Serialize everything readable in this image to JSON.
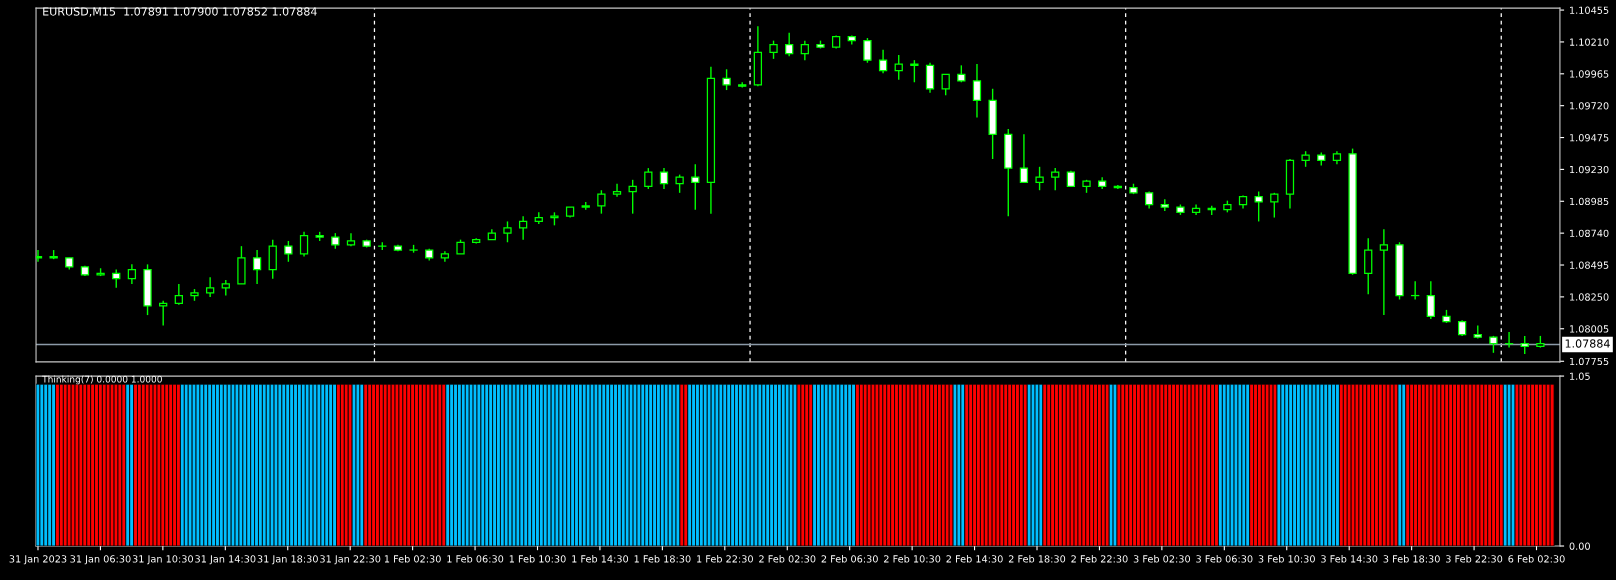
{
  "chart_data": [
    {
      "type": "candlestick",
      "title": "EURUSD,M15  1.07891 1.07900 1.07852 1.07884",
      "color": "#00ff00",
      "categories": [
        null,
        null,
        null,
        null,
        null,
        null,
        null,
        null,
        null,
        null,
        null,
        null,
        null,
        null,
        null,
        null,
        null,
        null,
        null,
        null,
        null,
        null,
        null,
        null,
        null,
        null,
        null,
        null,
        null,
        null,
        null,
        null,
        null,
        null,
        null,
        null,
        null,
        null,
        null,
        null,
        null,
        null,
        null,
        null,
        null,
        null,
        null,
        null,
        null,
        null,
        null,
        null,
        null,
        null,
        null,
        null,
        null,
        null,
        null,
        null,
        null,
        null,
        null,
        null,
        null,
        null,
        null,
        null,
        null,
        null,
        null,
        null,
        null,
        null,
        null,
        null,
        null,
        null,
        null,
        null,
        null,
        null,
        null,
        null,
        null,
        null,
        null,
        null,
        null,
        null,
        null,
        null,
        null,
        null,
        null,
        null,
        null
      ],
      "ohlc": [
        [
          1.0855,
          1.0861,
          1.0852,
          1.0856
        ],
        [
          1.0856,
          1.0861,
          1.0854,
          1.0855
        ],
        [
          1.0855,
          1.0855,
          1.0846,
          1.0848
        ],
        [
          1.0848,
          1.0849,
          1.0841,
          1.0842
        ],
        [
          1.0842,
          1.0847,
          1.0841,
          1.0843
        ],
        [
          1.0843,
          1.0846,
          1.0832,
          1.0839
        ],
        [
          1.0839,
          1.085,
          1.0835,
          1.0846
        ],
        [
          1.0846,
          1.085,
          1.0811,
          1.0818
        ],
        [
          1.0818,
          1.0822,
          1.0803,
          1.082
        ],
        [
          1.082,
          1.0835,
          1.0819,
          1.0826
        ],
        [
          1.0826,
          1.0831,
          1.0822,
          1.0828
        ],
        [
          1.0828,
          1.084,
          1.0825,
          1.0832
        ],
        [
          1.0832,
          1.0838,
          1.0826,
          1.0835
        ],
        [
          1.0835,
          1.0864,
          1.0835,
          1.0855
        ],
        [
          1.0855,
          1.0861,
          1.0835,
          1.0846
        ],
        [
          1.0846,
          1.0869,
          1.0839,
          1.0864
        ],
        [
          1.0864,
          1.0868,
          1.0852,
          1.0858
        ],
        [
          1.0858,
          1.0875,
          1.0856,
          1.0872
        ],
        [
          1.0872,
          1.0875,
          1.0868,
          1.0871
        ],
        [
          1.0871,
          1.0874,
          1.0862,
          1.0865
        ],
        [
          1.0865,
          1.0874,
          1.0864,
          1.0868
        ],
        [
          1.0868,
          1.0869,
          1.0863,
          1.0864
        ],
        [
          1.0864,
          1.0867,
          1.0861,
          1.0864
        ],
        [
          1.0864,
          1.0865,
          1.086,
          1.0861
        ],
        [
          1.0861,
          1.0865,
          1.0859,
          1.0861
        ],
        [
          1.0861,
          1.0862,
          1.0853,
          1.0855
        ],
        [
          1.0855,
          1.086,
          1.0852,
          1.0858
        ],
        [
          1.0858,
          1.0869,
          1.0858,
          1.0867
        ],
        [
          1.0867,
          1.087,
          1.0866,
          1.0869
        ],
        [
          1.0869,
          1.0877,
          1.0869,
          1.0874
        ],
        [
          1.0874,
          1.0883,
          1.0867,
          1.0878
        ],
        [
          1.0878,
          1.0887,
          1.0869,
          1.0883
        ],
        [
          1.0883,
          1.089,
          1.0881,
          1.0886
        ],
        [
          1.0886,
          1.089,
          1.088,
          1.0887
        ],
        [
          1.0887,
          1.0894,
          1.0886,
          1.0894
        ],
        [
          1.0894,
          1.0898,
          1.0892,
          1.0895
        ],
        [
          1.0895,
          1.0907,
          1.0889,
          1.0904
        ],
        [
          1.0904,
          1.0912,
          1.0902,
          1.0906
        ],
        [
          1.0906,
          1.0915,
          1.0889,
          1.091
        ],
        [
          1.091,
          1.0924,
          1.0908,
          1.0921
        ],
        [
          1.0921,
          1.0924,
          1.0908,
          1.0912
        ],
        [
          1.0912,
          1.0919,
          1.0905,
          1.0917
        ],
        [
          1.0917,
          1.0927,
          1.0892,
          1.0913
        ],
        [
          1.0913,
          1.1002,
          1.0889,
          1.0993
        ],
        [
          1.0993,
          1.1,
          1.0984,
          1.0988
        ],
        [
          1.0988,
          1.099,
          1.0986,
          1.0987
        ],
        [
          1.0988,
          1.1033,
          1.0987,
          1.1013
        ],
        [
          1.1013,
          1.1022,
          1.1008,
          1.1019
        ],
        [
          1.1019,
          1.1028,
          1.101,
          1.1012
        ],
        [
          1.1012,
          1.1022,
          1.1007,
          1.1019
        ],
        [
          1.1019,
          1.1022,
          1.1016,
          1.1017
        ],
        [
          1.1017,
          1.1026,
          1.1016,
          1.1025
        ],
        [
          1.1025,
          1.1026,
          1.1019,
          1.1022
        ],
        [
          1.1022,
          1.1024,
          1.1005,
          1.1007
        ],
        [
          1.1007,
          1.1015,
          1.0997,
          1.0999
        ],
        [
          1.0999,
          1.1011,
          1.0992,
          1.1004
        ],
        [
          1.1004,
          1.1007,
          1.099,
          1.1003
        ],
        [
          1.1003,
          1.1005,
          1.0982,
          1.0985
        ],
        [
          1.0985,
          1.0996,
          1.098,
          1.0996
        ],
        [
          1.0996,
          1.1003,
          1.099,
          1.0991
        ],
        [
          1.0991,
          1.1004,
          1.0963,
          1.0976
        ],
        [
          1.0976,
          1.0985,
          1.0931,
          1.095
        ],
        [
          1.095,
          1.0954,
          1.0887,
          1.0924
        ],
        [
          1.0924,
          1.095,
          1.0913,
          1.0913
        ],
        [
          1.0913,
          1.0925,
          1.0907,
          1.0917
        ],
        [
          1.0917,
          1.0924,
          1.0907,
          1.0921
        ],
        [
          1.0921,
          1.0922,
          1.091,
          1.091
        ],
        [
          1.091,
          1.0915,
          1.0905,
          1.0914
        ],
        [
          1.0914,
          1.0917,
          1.0908,
          1.091
        ],
        [
          1.091,
          1.0911,
          1.0908,
          1.0909
        ],
        [
          1.0909,
          1.0912,
          1.0904,
          1.0905
        ],
        [
          1.0905,
          1.0906,
          1.0893,
          1.0896
        ],
        [
          1.0896,
          1.09,
          1.0891,
          1.0894
        ],
        [
          1.0894,
          1.0896,
          1.0888,
          1.089
        ],
        [
          1.089,
          1.0896,
          1.0888,
          1.0893
        ],
        [
          1.0893,
          1.0895,
          1.0888,
          1.0892
        ],
        [
          1.0892,
          1.0899,
          1.089,
          1.0896
        ],
        [
          1.0896,
          1.0903,
          1.0893,
          1.0902
        ],
        [
          1.0902,
          1.0906,
          1.0883,
          1.0898
        ],
        [
          1.0898,
          1.0905,
          1.0886,
          1.0904
        ],
        [
          1.0904,
          1.0931,
          1.0893,
          1.093
        ],
        [
          1.093,
          1.0937,
          1.0925,
          1.0934
        ],
        [
          1.0934,
          1.0936,
          1.0926,
          1.093
        ],
        [
          1.093,
          1.0937,
          1.0927,
          1.0935
        ],
        [
          1.0935,
          1.0939,
          1.0842,
          1.0843
        ],
        [
          1.0843,
          1.087,
          1.0827,
          1.0861
        ],
        [
          1.0861,
          1.0877,
          1.0811,
          1.0865
        ],
        [
          1.0865,
          1.0867,
          1.0823,
          1.0826
        ],
        [
          1.0826,
          1.0837,
          1.0823,
          1.0826
        ],
        [
          1.0826,
          1.0837,
          1.0808,
          1.081
        ],
        [
          1.081,
          1.0815,
          1.0805,
          1.0806
        ],
        [
          1.0806,
          1.0807,
          1.0795,
          1.0796
        ],
        [
          1.0796,
          1.0803,
          1.0793,
          1.0794
        ],
        [
          1.0794,
          1.0795,
          1.0782,
          1.0789
        ],
        [
          1.0789,
          1.0798,
          1.0786,
          1.0789
        ],
        [
          1.0789,
          1.0795,
          1.0781,
          1.0787
        ],
        [
          1.0787,
          1.0795,
          1.0786,
          1.0789
        ]
      ],
      "ylim": [
        1.0775,
        1.1047
      ],
      "yticks": [
        1.10455,
        {
          "value": 1.1021,
          "label": "1.10210"
        },
        1.09965,
        {
          "value": 1.0972,
          "label": "1.09720"
        },
        1.09475,
        {
          "value": 1.0923,
          "label": "1.09230"
        },
        1.08985,
        {
          "value": 1.0874,
          "label": "1.08740"
        },
        1.08495,
        {
          "value": 1.0825,
          "label": "1.08250"
        },
        1.08005,
        1.07755
      ],
      "tick_labels": "y",
      "ref_lines": [
        {
          "axis": "y",
          "value": 1.07884,
          "label": "1.07884",
          "color": "#8c9aa8",
          "line_style": "solid"
        }
      ]
    },
    {
      "type": "bar",
      "title": "Thinking(7) 0.0000 1.0000",
      "categories": [
        "31 Jan 2023",
        null,
        null,
        null,
        null,
        null,
        null,
        null,
        null,
        null,
        null,
        null,
        null,
        null,
        null,
        null,
        "31 Jan 06:30",
        null,
        null,
        null,
        null,
        null,
        null,
        null,
        null,
        null,
        null,
        null,
        null,
        null,
        null,
        null,
        "31 Jan 10:30",
        null,
        null,
        null,
        null,
        null,
        null,
        null,
        null,
        null,
        null,
        null,
        null,
        null,
        null,
        null,
        "31 Jan 14:30",
        null,
        null,
        null,
        null,
        null,
        null,
        null,
        null,
        null,
        null,
        null,
        null,
        null,
        null,
        null,
        "31 Jan 18:30",
        null,
        null,
        null,
        null,
        null,
        null,
        null,
        null,
        null,
        null,
        null,
        null,
        null,
        null,
        null,
        "31 Jan 22:30",
        null,
        null,
        null,
        null,
        null,
        null,
        null,
        null,
        null,
        null,
        null,
        null,
        null,
        null,
        null,
        "1 Feb 02:30",
        null,
        null,
        null,
        null,
        null,
        null,
        null,
        null,
        null,
        null,
        null,
        null,
        null,
        null,
        null,
        "1 Feb 06:30",
        null,
        null,
        null,
        null,
        null,
        null,
        null,
        null,
        null,
        null,
        null,
        null,
        null,
        null,
        null,
        "1 Feb 10:30",
        null,
        null,
        null,
        null,
        null,
        null,
        null,
        null,
        null,
        null,
        null,
        null,
        null,
        null,
        null,
        "1 Feb 14:30",
        null,
        null,
        null,
        null,
        null,
        null,
        null,
        null,
        null,
        null,
        null,
        null,
        null,
        null,
        null,
        "1 Feb 18:30",
        null,
        null,
        null,
        null,
        null,
        null,
        null,
        null,
        null,
        null,
        null,
        null,
        null,
        null,
        null,
        "1 Feb 22:30",
        null,
        null,
        null,
        null,
        null,
        null,
        null,
        null,
        null,
        null,
        null,
        null,
        null,
        null,
        null,
        "2 Feb 02:30",
        null,
        null,
        null,
        null,
        null,
        null,
        null,
        null,
        null,
        null,
        null,
        null,
        null,
        null,
        null,
        "2 Feb 06:30",
        null,
        null,
        null,
        null,
        null,
        null,
        null,
        null,
        null,
        null,
        null,
        null,
        null,
        null,
        null,
        "2 Feb 10:30",
        null,
        null,
        null,
        null,
        null,
        null,
        null,
        null,
        null,
        null,
        null,
        null,
        null,
        null,
        null,
        "2 Feb 14:30",
        null,
        null,
        null,
        null,
        null,
        null,
        null,
        null,
        null,
        null,
        null,
        null,
        null,
        null,
        null,
        "2 Feb 18:30",
        null,
        null,
        null,
        null,
        null,
        null,
        null,
        null,
        null,
        null,
        null,
        null,
        null,
        null,
        null,
        "2 Feb 22:30",
        null,
        null,
        null,
        null,
        null,
        null,
        null,
        null,
        null,
        null,
        null,
        null,
        null,
        null,
        null,
        "3 Feb 02:30",
        null,
        null,
        null,
        null,
        null,
        null,
        null,
        null,
        null,
        null,
        null,
        null,
        null,
        null,
        null,
        "3 Feb 06:30",
        null,
        null,
        null,
        null,
        null,
        null,
        null,
        null,
        null,
        null,
        null,
        null,
        null,
        null,
        null,
        "3 Feb 10:30",
        null,
        null,
        null,
        null,
        null,
        null,
        null,
        null,
        null,
        null,
        null,
        null,
        null,
        null,
        null,
        "3 Feb 14:30",
        null,
        null,
        null,
        null,
        null,
        null,
        null,
        null,
        null,
        null,
        null,
        null,
        null,
        null,
        null,
        "3 Feb 18:30",
        null,
        null,
        null,
        null,
        null,
        null,
        null,
        null,
        null,
        null,
        null,
        null,
        null,
        null,
        null,
        "3 Feb 22:30",
        null,
        null,
        null,
        null,
        null,
        null,
        null,
        null,
        null,
        null,
        null,
        null,
        null,
        null,
        null,
        "6 Feb 02:30",
        null,
        null,
        null,
        null
      ],
      "values": [
        1,
        1,
        1,
        1,
        1,
        1,
        1,
        1,
        1,
        1,
        1,
        1,
        1,
        1,
        1,
        1,
        1,
        1,
        1,
        1,
        1,
        1,
        1,
        1,
        1,
        1,
        1,
        1,
        1,
        1,
        1,
        1,
        1,
        1,
        1,
        1,
        1,
        1,
        1,
        1,
        1,
        1,
        1,
        1,
        1,
        1,
        1,
        1,
        1,
        1,
        1,
        1,
        1,
        1,
        1,
        1,
        1,
        1,
        1,
        1,
        1,
        1,
        1,
        1,
        1,
        1,
        1,
        1,
        1,
        1,
        1,
        1,
        1,
        1,
        1,
        1,
        1,
        1,
        1,
        1,
        1,
        1,
        1,
        1,
        1,
        1,
        1,
        1,
        1,
        1,
        1,
        1,
        1,
        1,
        1,
        1,
        1,
        1,
        1,
        1,
        1,
        1,
        1,
        1,
        1,
        1,
        1,
        1,
        1,
        1,
        1,
        1,
        1,
        1,
        1,
        1,
        1,
        1,
        1,
        1,
        1,
        1,
        1,
        1,
        1,
        1,
        1,
        1,
        1,
        1,
        1,
        1,
        1,
        1,
        1,
        1,
        1,
        1,
        1,
        1,
        1,
        1,
        1,
        1,
        1,
        1,
        1,
        1,
        1,
        1,
        1,
        1,
        1,
        1,
        1,
        1,
        1,
        1,
        1,
        1,
        1,
        1,
        1,
        1,
        1,
        1,
        1,
        1,
        1,
        1,
        1,
        1,
        1,
        1,
        1,
        1,
        1,
        1,
        1,
        1,
        1,
        1,
        1,
        1,
        1,
        1,
        1,
        1,
        1,
        1,
        1,
        1,
        1,
        1,
        1,
        1,
        1,
        1,
        1,
        1,
        1,
        1,
        1,
        1,
        1,
        1,
        1,
        1,
        1,
        1,
        1,
        1,
        1,
        1,
        1,
        1,
        1,
        1,
        1,
        1,
        1,
        1,
        1,
        1,
        1,
        1,
        1,
        1,
        1,
        1,
        1,
        1,
        1,
        1,
        1,
        1,
        1,
        1,
        1,
        1,
        1,
        1,
        1,
        1,
        1,
        1,
        1,
        1,
        1,
        1,
        1,
        1,
        1,
        1,
        1,
        1,
        1,
        1,
        1,
        1,
        1,
        1,
        1,
        1,
        1,
        1,
        1,
        1,
        1,
        1,
        1,
        1,
        1,
        1,
        1,
        1,
        1,
        1,
        1,
        1,
        1,
        1,
        1,
        1,
        1,
        1,
        1,
        1,
        1,
        1,
        1,
        1,
        1,
        1,
        1,
        1,
        1,
        1,
        1,
        1,
        1,
        1,
        1,
        1,
        1,
        1,
        1,
        1,
        1,
        1,
        1,
        1,
        1,
        1,
        1,
        1,
        1,
        1,
        1,
        1,
        1,
        1,
        1,
        1,
        1,
        1,
        1,
        1,
        1,
        1,
        1,
        1,
        1,
        1,
        1,
        1,
        1,
        1,
        1,
        1,
        1,
        1,
        1,
        1,
        1,
        1,
        1,
        1,
        1,
        1,
        1,
        1,
        1,
        1,
        1,
        1,
        1,
        1,
        1,
        1,
        1,
        1,
        1,
        1,
        1,
        1,
        1,
        1,
        1,
        1,
        1,
        1,
        1,
        1,
        1,
        1,
        1,
        1,
        1,
        1,
        1,
        1,
        1,
        1,
        1,
        1,
        1,
        1,
        1
      ],
      "colors": [
        "#00bfff",
        "#00bfff",
        "#00bfff",
        "#00bfff",
        "#00bfff",
        "#ff0000",
        "#ff0000",
        "#ff0000",
        "#ff0000",
        "#ff0000",
        "#ff0000",
        "#ff0000",
        "#ff0000",
        "#ff0000",
        "#ff0000",
        "#ff0000",
        "#ff0000",
        "#ff0000",
        "#ff0000",
        "#ff0000",
        "#ff0000",
        "#ff0000",
        "#ff0000",
        "#00bfff",
        "#00bfff",
        "#ff0000",
        "#ff0000",
        "#ff0000",
        "#ff0000",
        "#ff0000",
        "#ff0000",
        "#ff0000",
        "#ff0000",
        "#ff0000",
        "#ff0000",
        "#ff0000",
        "#ff0000",
        "#00bfff",
        "#00bfff",
        "#00bfff",
        "#00bfff",
        "#00bfff",
        "#00bfff",
        "#00bfff",
        "#00bfff",
        "#00bfff",
        "#00bfff",
        "#00bfff",
        "#00bfff",
        "#00bfff",
        "#00bfff",
        "#00bfff",
        "#00bfff",
        "#00bfff",
        "#00bfff",
        "#00bfff",
        "#00bfff",
        "#00bfff",
        "#00bfff",
        "#00bfff",
        "#00bfff",
        "#00bfff",
        "#00bfff",
        "#00bfff",
        "#00bfff",
        "#00bfff",
        "#00bfff",
        "#00bfff",
        "#00bfff",
        "#00bfff",
        "#00bfff",
        "#00bfff",
        "#00bfff",
        "#00bfff",
        "#00bfff",
        "#00bfff",
        "#00bfff",
        "#ff0000",
        "#ff0000",
        "#ff0000",
        "#ff0000",
        "#00bfff",
        "#00bfff",
        "#00bfff",
        "#ff0000",
        "#ff0000",
        "#ff0000",
        "#ff0000",
        "#ff0000",
        "#ff0000",
        "#ff0000",
        "#ff0000",
        "#ff0000",
        "#ff0000",
        "#ff0000",
        "#ff0000",
        "#ff0000",
        "#ff0000",
        "#ff0000",
        "#ff0000",
        "#ff0000",
        "#ff0000",
        "#ff0000",
        "#ff0000",
        "#ff0000",
        "#00bfff",
        "#00bfff",
        "#00bfff",
        "#00bfff",
        "#00bfff",
        "#00bfff",
        "#00bfff",
        "#00bfff",
        "#00bfff",
        "#00bfff",
        "#00bfff",
        "#00bfff",
        "#00bfff",
        "#00bfff",
        "#00bfff",
        "#00bfff",
        "#00bfff",
        "#00bfff",
        "#00bfff",
        "#00bfff",
        "#00bfff",
        "#00bfff",
        "#00bfff",
        "#00bfff",
        "#00bfff",
        "#00bfff",
        "#00bfff",
        "#00bfff",
        "#00bfff",
        "#00bfff",
        "#00bfff",
        "#00bfff",
        "#00bfff",
        "#00bfff",
        "#00bfff",
        "#00bfff",
        "#00bfff",
        "#00bfff",
        "#00bfff",
        "#00bfff",
        "#00bfff",
        "#00bfff",
        "#00bfff",
        "#00bfff",
        "#00bfff",
        "#00bfff",
        "#00bfff",
        "#00bfff",
        "#00bfff",
        "#00bfff",
        "#00bfff",
        "#00bfff",
        "#00bfff",
        "#00bfff",
        "#00bfff",
        "#00bfff",
        "#00bfff",
        "#00bfff",
        "#00bfff",
        "#00bfff",
        "#ff0000",
        "#ff0000",
        "#00bfff",
        "#00bfff",
        "#00bfff",
        "#00bfff",
        "#00bfff",
        "#00bfff",
        "#00bfff",
        "#00bfff",
        "#00bfff",
        "#00bfff",
        "#00bfff",
        "#00bfff",
        "#00bfff",
        "#00bfff",
        "#00bfff",
        "#00bfff",
        "#00bfff",
        "#00bfff",
        "#00bfff",
        "#00bfff",
        "#00bfff",
        "#00bfff",
        "#00bfff",
        "#00bfff",
        "#00bfff",
        "#00bfff",
        "#00bfff",
        "#00bfff",
        "#ff0000",
        "#ff0000",
        "#ff0000",
        "#ff0000",
        "#00bfff",
        "#00bfff",
        "#00bfff",
        "#00bfff",
        "#00bfff",
        "#00bfff",
        "#00bfff",
        "#00bfff",
        "#00bfff",
        "#00bfff",
        "#00bfff",
        "#ff0000",
        "#ff0000",
        "#ff0000",
        "#ff0000",
        "#ff0000",
        "#ff0000",
        "#ff0000",
        "#ff0000",
        "#ff0000",
        "#ff0000",
        "#ff0000",
        "#ff0000",
        "#ff0000",
        "#ff0000",
        "#ff0000",
        "#ff0000",
        "#ff0000",
        "#ff0000",
        "#ff0000",
        "#ff0000",
        "#ff0000",
        "#ff0000",
        "#ff0000",
        "#ff0000",
        "#ff0000",
        "#00bfff",
        "#00bfff",
        "#00bfff",
        "#ff0000",
        "#ff0000",
        "#ff0000",
        "#ff0000",
        "#ff0000",
        "#ff0000",
        "#ff0000",
        "#ff0000",
        "#ff0000",
        "#ff0000",
        "#ff0000",
        "#ff0000",
        "#ff0000",
        "#ff0000",
        "#ff0000",
        "#ff0000",
        "#00bfff",
        "#00bfff",
        "#00bfff",
        "#00bfff",
        "#ff0000",
        "#ff0000",
        "#ff0000",
        "#ff0000",
        "#ff0000",
        "#ff0000",
        "#ff0000",
        "#ff0000",
        "#ff0000",
        "#ff0000",
        "#ff0000",
        "#ff0000",
        "#ff0000",
        "#ff0000",
        "#ff0000",
        "#ff0000",
        "#ff0000",
        "#00bfff",
        "#00bfff",
        "#ff0000",
        "#ff0000",
        "#ff0000",
        "#ff0000",
        "#ff0000",
        "#ff0000",
        "#ff0000",
        "#ff0000",
        "#ff0000",
        "#ff0000",
        "#ff0000",
        "#ff0000",
        "#ff0000",
        "#ff0000",
        "#ff0000",
        "#ff0000",
        "#ff0000",
        "#ff0000",
        "#ff0000",
        "#ff0000",
        "#ff0000",
        "#ff0000",
        "#ff0000",
        "#ff0000",
        "#ff0000",
        "#ff0000",
        "#00bfff",
        "#00bfff",
        "#00bfff",
        "#00bfff",
        "#00bfff",
        "#00bfff",
        "#00bfff",
        "#00bfff",
        "#ff0000",
        "#ff0000",
        "#ff0000",
        "#ff0000",
        "#ff0000",
        "#ff0000",
        "#ff0000",
        "#00bfff",
        "#00bfff",
        "#00bfff",
        "#00bfff",
        "#00bfff",
        "#00bfff",
        "#00bfff",
        "#00bfff",
        "#00bfff",
        "#00bfff",
        "#00bfff",
        "#00bfff",
        "#00bfff",
        "#00bfff",
        "#00bfff",
        "#00bfff",
        "#ff0000",
        "#ff0000",
        "#ff0000",
        "#ff0000",
        "#ff0000",
        "#ff0000",
        "#ff0000",
        "#ff0000",
        "#ff0000",
        "#ff0000",
        "#ff0000",
        "#ff0000",
        "#ff0000",
        "#ff0000",
        "#ff0000",
        "#00bfff",
        "#00bfff",
        "#ff0000",
        "#ff0000",
        "#ff0000",
        "#ff0000",
        "#ff0000",
        "#ff0000",
        "#ff0000",
        "#ff0000",
        "#ff0000",
        "#ff0000",
        "#ff0000",
        "#ff0000",
        "#ff0000",
        "#ff0000",
        "#ff0000",
        "#ff0000",
        "#ff0000",
        "#ff0000",
        "#ff0000",
        "#ff0000",
        "#ff0000",
        "#ff0000",
        "#ff0000",
        "#ff0000",
        "#ff0000",
        "#00bfff",
        "#00bfff",
        "#00bfff",
        "#ff0000",
        "#ff0000",
        "#ff0000",
        "#ff0000",
        "#ff0000",
        "#ff0000",
        "#ff0000",
        "#ff0000",
        "#ff0000",
        "#ff0000"
      ],
      "ylim": [
        0,
        1.05
      ],
      "yticks": [
        {
          "value": 0,
          "label": "0.00"
        },
        1.05
      ]
    }
  ]
}
